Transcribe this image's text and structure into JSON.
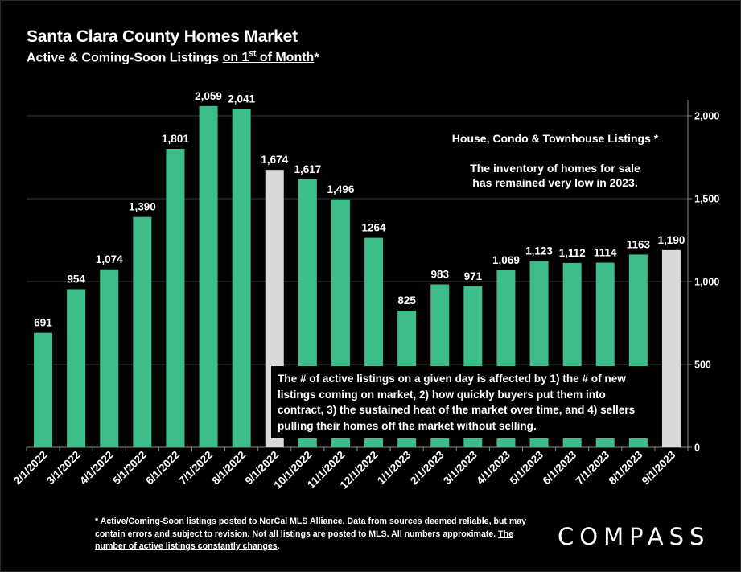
{
  "header": {
    "title": "Santa Clara County Homes Market",
    "subtitle_prefix": "Active & Coming-Soon Listings ",
    "subtitle_underlined_pre": "on 1",
    "subtitle_sup": "st",
    "subtitle_underlined_post": " of Month",
    "subtitle_suffix": "*"
  },
  "notes": {
    "heading": "House, Condo & Townhouse Listings *",
    "line1": "The inventory of homes for sale",
    "line2": "has remained very low in 2023."
  },
  "callout": "The # of active listings on a given day is affected by 1) the # of new listings coming on market, 2) how quickly buyers put them into contract, 3) the sustained heat of the market over time, and 4) sellers pulling their homes off the market without selling.",
  "footnote": {
    "text": "* Active/Coming-Soon listings posted to NorCal MLS Alliance.  Data from sources deemed reliable, but may contain errors and subject to revision.  Not all listings are posted to MLS. All numbers approximate. ",
    "underlined": "The number of active listings constantly changes",
    "end": "."
  },
  "logo": "COMPASS",
  "chart_data": {
    "type": "bar",
    "categories": [
      "2/1/2022",
      "3/1/2022",
      "4/1/2022",
      "5/1/2022",
      "6/1/2022",
      "7/1/2022",
      "8/1/2022",
      "9/1/2022",
      "10/1/2022",
      "11/1/2022",
      "12/1/2022",
      "1/1/2023",
      "2/1/2023",
      "3/1/2023",
      "4/1/2023",
      "5/1/2023",
      "6/1/2023",
      "7/1/2023",
      "8/1/2023",
      "9/1/2023"
    ],
    "values": [
      691,
      954,
      1074,
      1390,
      1801,
      2059,
      2041,
      1674,
      1617,
      1496,
      1264,
      825,
      983,
      971,
      1069,
      1123,
      1112,
      1114,
      1163,
      1190
    ],
    "value_labels": [
      "691",
      "954",
      "1,074",
      "1,390",
      "1,801",
      "2,059",
      "2,041",
      "1,674",
      "1,617",
      "1,496",
      "1264",
      "825",
      "983",
      "971",
      "1,069",
      "1,123",
      "1,112",
      "1114",
      "1163",
      "1,190"
    ],
    "highlighted": [
      "9/1/2022",
      "9/1/2023"
    ],
    "yticks": [
      0,
      500,
      1000,
      1500,
      2000
    ],
    "ytick_labels": [
      "0",
      "500",
      "1,000",
      "1,500",
      "2,000"
    ],
    "ylim": [
      0,
      2100
    ],
    "yaxis_side": "right",
    "grid": true,
    "colors": {
      "bar": "#3dbd8a",
      "highlight": "#d9d9d9",
      "grid": "#3a3a3a",
      "axis": "#8a8a8a"
    }
  }
}
